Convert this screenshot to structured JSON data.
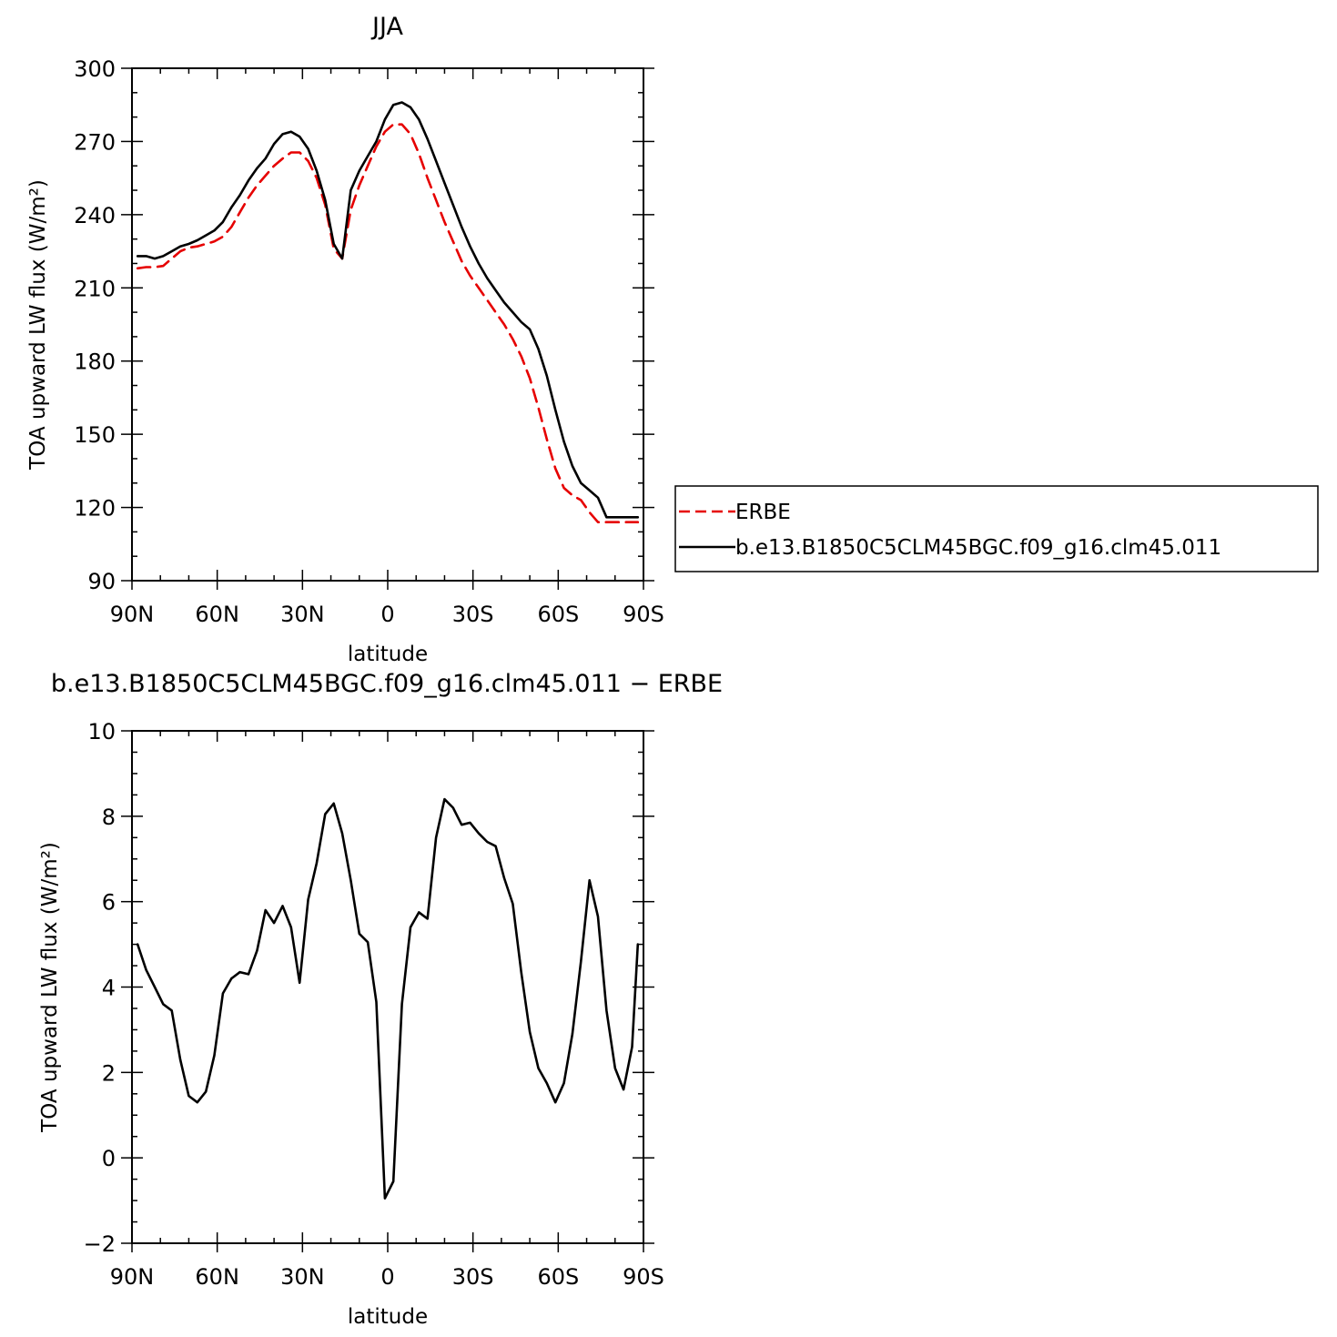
{
  "chart_data": [
    {
      "type": "line",
      "title": "JJA",
      "xlabel": "latitude",
      "ylabel": "TOA upward LW flux (W/m²)",
      "xlim": [
        -90,
        90
      ],
      "ylim": [
        90,
        300
      ],
      "x_ticks": [
        {
          "value": -90,
          "label": "90N"
        },
        {
          "value": -60,
          "label": "60N"
        },
        {
          "value": -30,
          "label": "30N"
        },
        {
          "value": 0,
          "label": "0"
        },
        {
          "value": 30,
          "label": "30S"
        },
        {
          "value": 60,
          "label": "60S"
        },
        {
          "value": 90,
          "label": "90S"
        }
      ],
      "y_ticks": [
        90,
        120,
        150,
        180,
        210,
        240,
        270,
        300
      ],
      "legend": "right",
      "series": [
        {
          "name": "ERBE",
          "color": "#e60000",
          "dash": "dashed",
          "x": [
            -88,
            -85,
            -82,
            -79,
            -76,
            -73,
            -70,
            -67,
            -64,
            -61,
            -58,
            -55,
            -52,
            -49,
            -46,
            -43,
            -40,
            -37,
            -34,
            -31,
            -28,
            -25,
            -22,
            -19,
            -16,
            -13,
            -10,
            -7,
            -4,
            -1,
            2,
            5,
            8,
            11,
            14,
            17,
            20,
            23,
            26,
            29,
            32,
            35,
            38,
            41,
            44,
            47,
            50,
            53,
            56,
            59,
            62,
            65,
            68,
            71,
            74,
            77,
            80,
            83,
            86,
            88
          ],
          "y": [
            218,
            218.5,
            218.5,
            219,
            222,
            225,
            226.5,
            227,
            228,
            229,
            231,
            235,
            241,
            247,
            252,
            256,
            260,
            263,
            265.5,
            265.5,
            262,
            255,
            244,
            226,
            222,
            242,
            252,
            260,
            268,
            274,
            277,
            277,
            273,
            265,
            255,
            246,
            237,
            229,
            221,
            215,
            210,
            205,
            200,
            195,
            189,
            182,
            173,
            161,
            148,
            136,
            128,
            125,
            123,
            118,
            114,
            114,
            114,
            114,
            114,
            114
          ],
          "dash_pattern": "14,8"
        },
        {
          "name": "b.e13.B1850C5CLM45BGC.f09_g16.clm45.011",
          "color": "#000000",
          "dash": "solid",
          "x": [
            -88,
            -85,
            -82,
            -79,
            -76,
            -73,
            -70,
            -67,
            -64,
            -61,
            -58,
            -55,
            -52,
            -49,
            -46,
            -43,
            -40,
            -37,
            -34,
            -31,
            -28,
            -25,
            -22,
            -19,
            -16,
            -13,
            -10,
            -7,
            -4,
            -1,
            2,
            5,
            8,
            11,
            14,
            17,
            20,
            23,
            26,
            29,
            32,
            35,
            38,
            41,
            44,
            47,
            50,
            53,
            56,
            59,
            62,
            65,
            68,
            71,
            74,
            77,
            80,
            83,
            86,
            88
          ],
          "y": [
            223,
            223,
            222,
            223,
            225,
            227,
            228,
            229.5,
            231.5,
            233.5,
            237,
            243,
            248,
            254,
            259,
            263,
            269,
            273,
            274,
            272,
            267,
            258,
            246,
            228,
            222,
            250,
            258,
            264,
            270,
            279,
            285,
            286,
            284,
            279,
            271,
            262,
            253,
            244,
            235,
            227,
            220,
            214,
            209,
            204,
            200,
            196,
            193,
            185,
            174,
            160,
            147,
            137,
            130,
            127,
            124,
            116,
            116,
            116,
            116,
            116
          ]
        }
      ]
    },
    {
      "type": "line",
      "title": "b.e13.B1850C5CLM45BGC.f09_g16.clm45.011 − ERBE",
      "xlabel": "latitude",
      "ylabel": "TOA upward LW flux (W/m²)",
      "xlim": [
        -90,
        90
      ],
      "ylim": [
        -2,
        10
      ],
      "x_ticks": [
        {
          "value": -90,
          "label": "90N"
        },
        {
          "value": -60,
          "label": "60N"
        },
        {
          "value": -30,
          "label": "30N"
        },
        {
          "value": 0,
          "label": "0"
        },
        {
          "value": 30,
          "label": "30S"
        },
        {
          "value": 60,
          "label": "60S"
        },
        {
          "value": 90,
          "label": "90S"
        }
      ],
      "y_ticks": [
        -2,
        0,
        2,
        4,
        6,
        8,
        10
      ],
      "y_tick_labels": [
        "−2",
        "0",
        "2",
        "4",
        "6",
        "8",
        "10"
      ],
      "series": [
        {
          "color": "#000000",
          "dash": "solid",
          "x": [
            -88,
            -85,
            -82,
            -79,
            -76,
            -73,
            -70,
            -67,
            -64,
            -61,
            -58,
            -55,
            -52,
            -49,
            -46,
            -43,
            -40,
            -37,
            -34,
            -31,
            -28,
            -25,
            -22,
            -19,
            -16,
            -13,
            -10,
            -7,
            -4,
            -1,
            2,
            5,
            8,
            11,
            14,
            17,
            20,
            23,
            26,
            29,
            32,
            35,
            38,
            41,
            44,
            47,
            50,
            53,
            56,
            59,
            62,
            65,
            68,
            71,
            74,
            77,
            80,
            83,
            86,
            88
          ],
          "y": [
            5.0,
            4.4,
            4.0,
            3.6,
            3.45,
            2.3,
            1.45,
            1.3,
            1.55,
            2.4,
            3.85,
            4.2,
            4.35,
            4.3,
            4.85,
            5.8,
            5.5,
            5.9,
            5.4,
            4.1,
            6.05,
            6.9,
            8.05,
            8.3,
            7.6,
            6.5,
            5.25,
            5.05,
            3.65,
            -0.95,
            -0.55,
            3.6,
            5.4,
            5.75,
            5.6,
            7.5,
            8.4,
            8.2,
            7.8,
            7.85,
            7.6,
            7.4,
            7.3,
            6.55,
            5.95,
            4.35,
            2.95,
            2.1,
            1.75,
            1.3,
            1.75,
            2.9,
            4.6,
            6.5,
            5.65,
            3.45,
            2.1,
            1.6,
            2.6,
            5.0
          ]
        }
      ]
    }
  ]
}
